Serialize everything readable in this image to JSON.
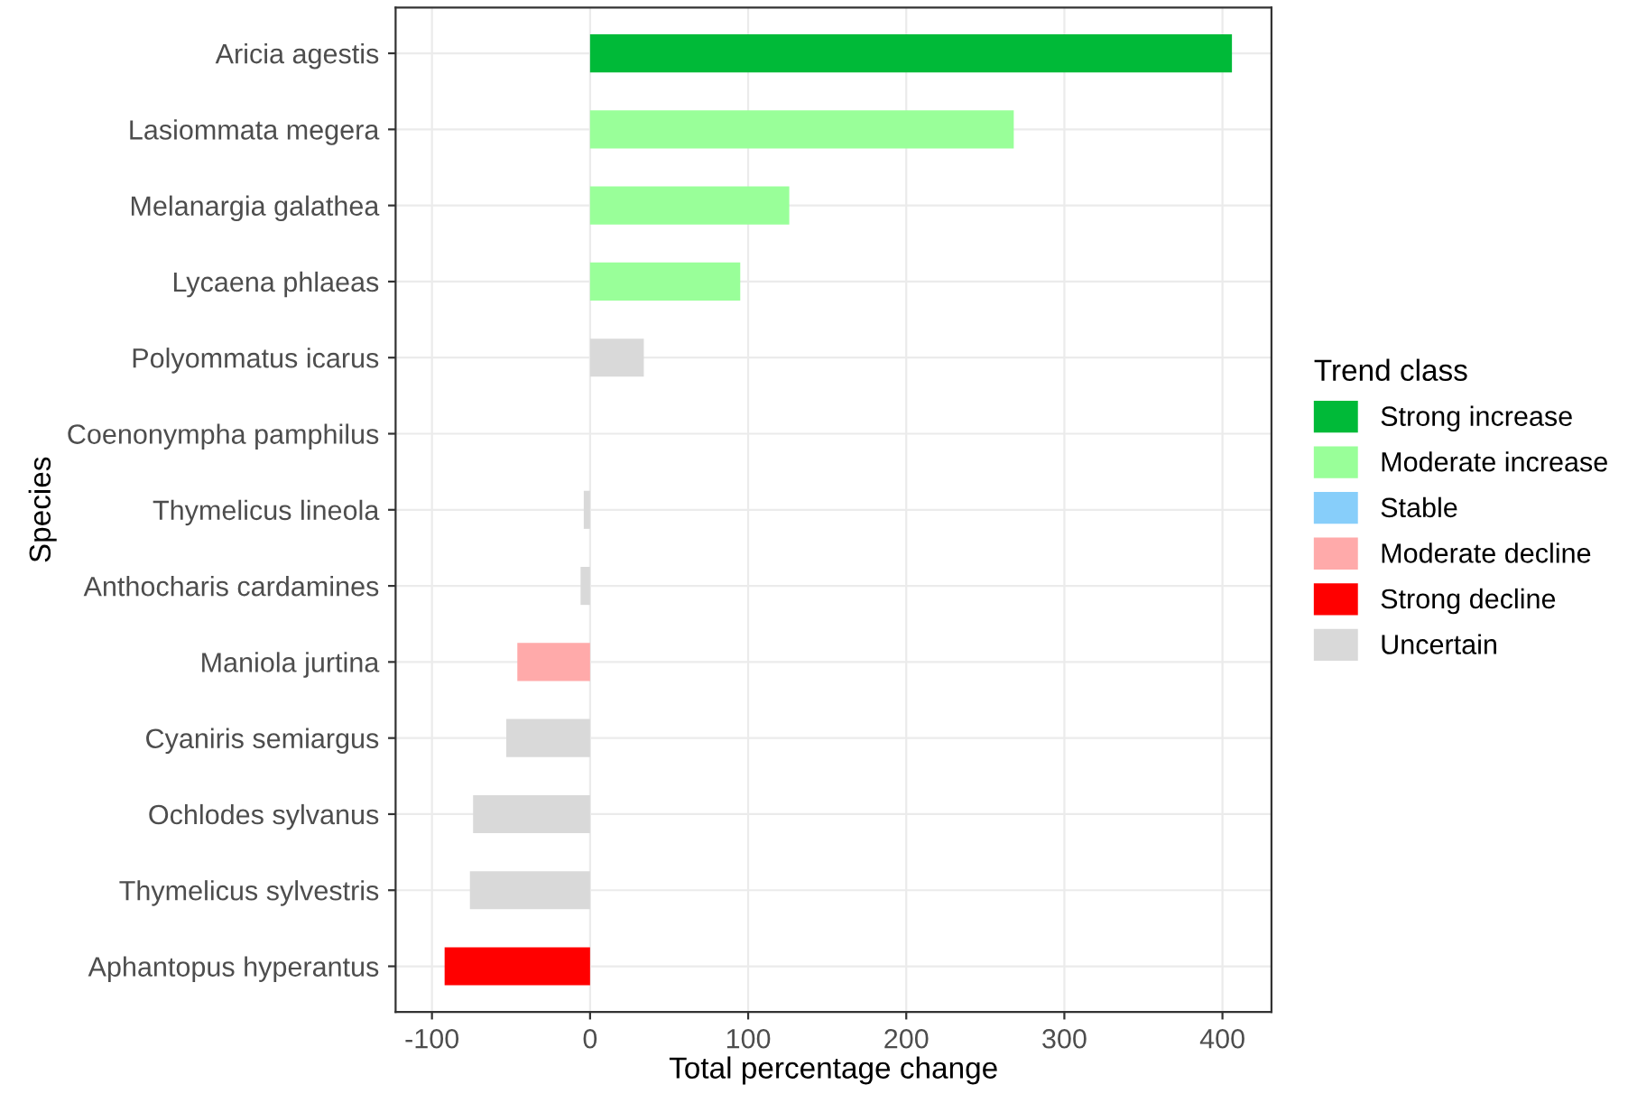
{
  "chart_data": {
    "type": "bar",
    "orientation": "horizontal",
    "xlabel": "Total percentage change",
    "ylabel": "Species",
    "legend_title": "Trend class",
    "legend": "right",
    "grid": true,
    "categories": [
      "Aricia agestis",
      "Lasiommata megera",
      "Melanargia galathea",
      "Lycaena phlaeas",
      "Polyommatus icarus",
      "Coenonympha pamphilus",
      "Thymelicus lineola",
      "Anthocharis cardamines",
      "Maniola jurtina",
      "Cyaniris semiargus",
      "Ochlodes sylvanus",
      "Thymelicus sylvestris",
      "Aphantopus hyperantus"
    ],
    "xlim": [
      -123,
      431
    ],
    "xticks": [
      -100,
      0,
      100,
      200,
      300,
      400
    ],
    "series": [
      {
        "name": "Strong increase",
        "color": "#00ba38",
        "values": [
          406,
          null,
          null,
          null,
          null,
          null,
          null,
          null,
          null,
          null,
          null,
          null,
          null
        ]
      },
      {
        "name": "Moderate increase",
        "color": "#99ff99",
        "values": [
          null,
          268,
          126,
          95,
          null,
          null,
          null,
          null,
          null,
          null,
          null,
          null,
          null
        ]
      },
      {
        "name": "Stable",
        "color": "#87cefa",
        "values": [
          null,
          null,
          null,
          null,
          null,
          0,
          null,
          null,
          null,
          null,
          null,
          null,
          null
        ]
      },
      {
        "name": "Moderate decline",
        "color": "#ffaaaa",
        "values": [
          null,
          null,
          null,
          null,
          null,
          null,
          null,
          null,
          -46,
          null,
          null,
          null,
          null
        ]
      },
      {
        "name": "Strong decline",
        "color": "#ff0000",
        "values": [
          null,
          null,
          null,
          null,
          null,
          null,
          null,
          null,
          null,
          null,
          null,
          null,
          -92
        ]
      },
      {
        "name": "Uncertain",
        "color": "#d9d9d9",
        "values": [
          null,
          null,
          null,
          null,
          34,
          null,
          -4,
          -6,
          null,
          -53,
          -74,
          -76,
          null
        ]
      }
    ]
  }
}
